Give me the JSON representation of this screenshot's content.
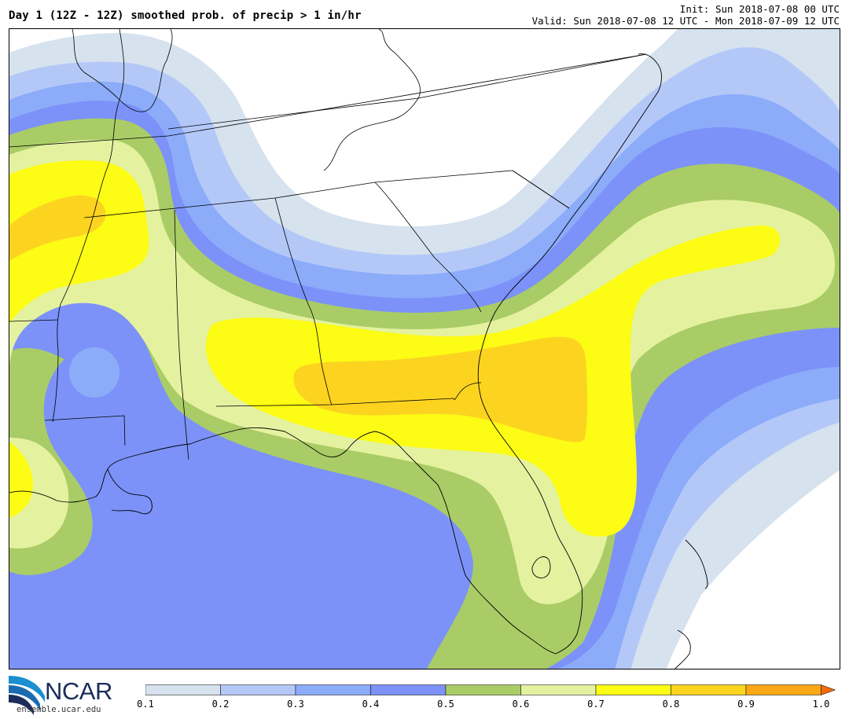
{
  "header": {
    "title": "Day 1 (12Z - 12Z) smoothed prob. of precip > 1 in/hr",
    "init": "Init: Sun 2018-07-08 00 UTC",
    "valid": "Valid: Sun 2018-07-08 12 UTC - Mon 2018-07-09 12 UTC"
  },
  "logo": {
    "name": "NCAR",
    "url": "ensemble.ucar.edu"
  },
  "colorbar": {
    "labels": [
      "0.1",
      "0.2",
      "0.3",
      "0.4",
      "0.5",
      "0.6",
      "0.7",
      "0.8",
      "0.9",
      "1.0"
    ],
    "colors": [
      "#d6e2ee",
      "#b4c8f8",
      "#8cacfa",
      "#7c92f8",
      "#aacc66",
      "#e4f2a0",
      "#fcfc14",
      "#fcd420",
      "#fca814"
    ]
  },
  "map": {
    "region": "Southeastern United States",
    "contour_levels": [
      0.1,
      0.2,
      0.3,
      0.4,
      0.5,
      0.6,
      0.7,
      0.8,
      0.9
    ]
  }
}
